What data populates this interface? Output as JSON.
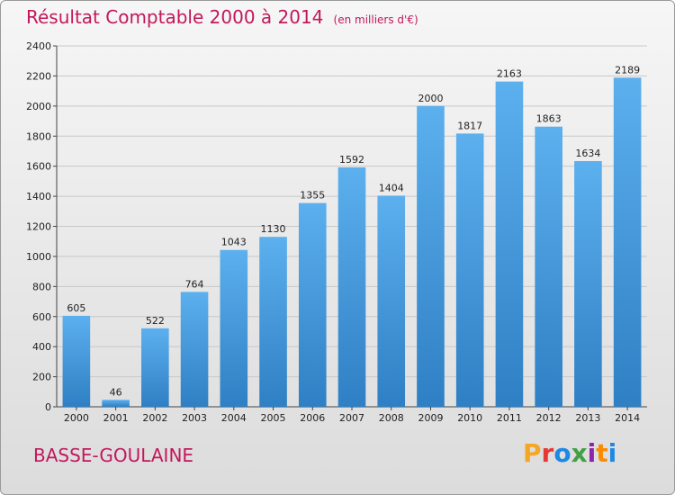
{
  "chart_data": {
    "type": "bar",
    "title": "Résultat Comptable 2000 à 2014",
    "subtitle": "(en milliers d'€)",
    "categories": [
      "2000",
      "2001",
      "2002",
      "2003",
      "2004",
      "2005",
      "2006",
      "2007",
      "2008",
      "2009",
      "2010",
      "2011",
      "2012",
      "2013",
      "2014"
    ],
    "values": [
      605,
      46,
      522,
      764,
      1043,
      1130,
      1355,
      1592,
      1404,
      2000,
      1817,
      2163,
      1863,
      1634,
      2189
    ],
    "ylim": [
      0,
      2400
    ],
    "yticks": [
      0,
      200,
      400,
      600,
      800,
      1000,
      1200,
      1400,
      1600,
      1800,
      2000,
      2200,
      2400
    ],
    "grid": true,
    "xlabel": "",
    "ylabel": "",
    "bar_color": "#3a8fd6"
  },
  "footer": {
    "commune": "BASSE-GOULAINE",
    "logo": [
      "P",
      "r",
      "o",
      "x",
      "i",
      "t",
      "i"
    ],
    "logo_colors": [
      "#f5a623",
      "#e53935",
      "#1e88e5",
      "#43a047",
      "#8e24aa",
      "#fb8c00",
      "#1e88e5"
    ]
  }
}
